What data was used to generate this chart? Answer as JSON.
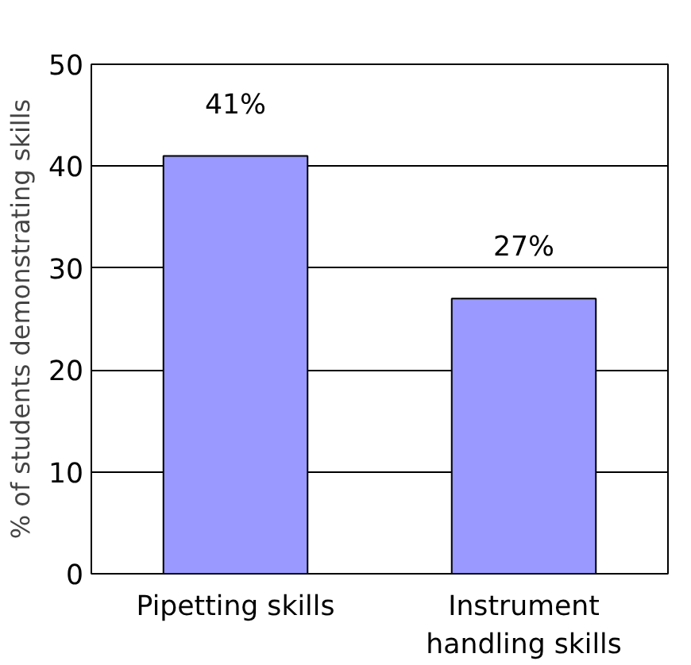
{
  "chart_data": {
    "type": "bar",
    "ylabel": "% of students demonstrating skills",
    "categories": [
      "Pipetting skills",
      "Instrument handling skills"
    ],
    "values": [
      41,
      27
    ],
    "color": "#9999ff",
    "value_labels": [
      "41%",
      "27%"
    ],
    "ylim": [
      0,
      50
    ],
    "yticks": [
      0,
      10,
      20,
      30,
      40,
      50
    ],
    "grid": "y"
  }
}
